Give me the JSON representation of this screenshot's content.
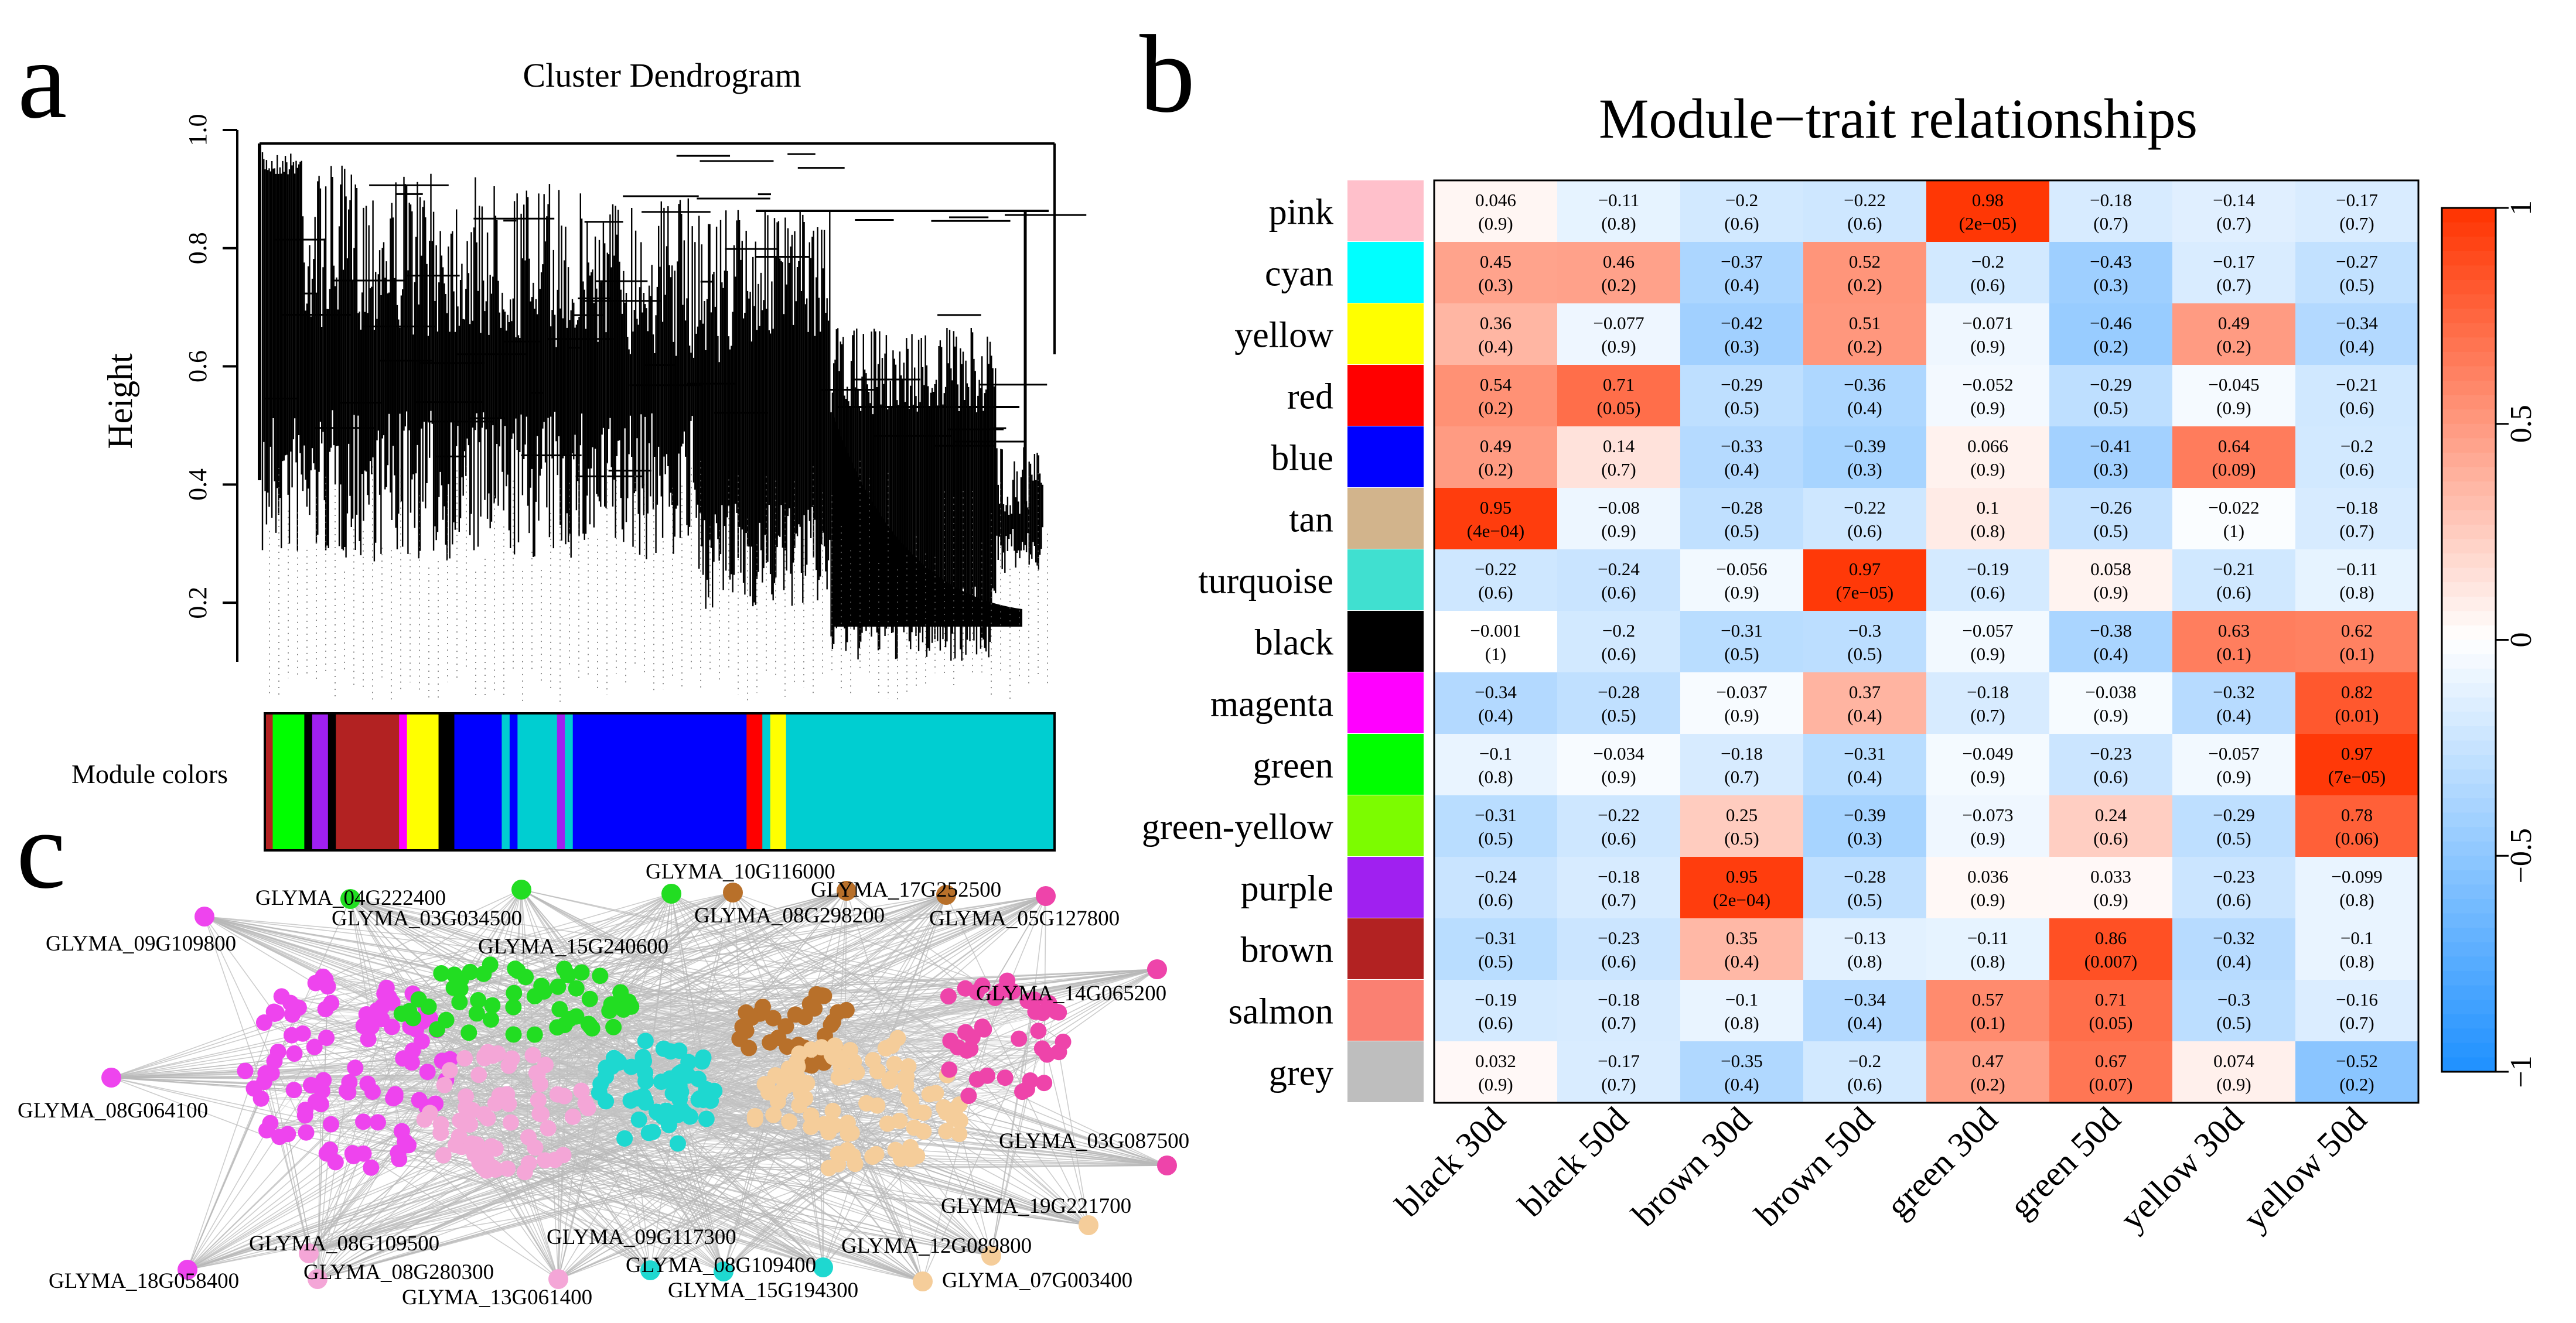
{
  "panels": {
    "a": "a",
    "b": "b",
    "c": "c"
  },
  "chart_data": [
    {
      "type": "dendrogram",
      "title": "Cluster Dendrogram",
      "ylabel": "Height",
      "ylim": [
        0.1,
        1.0
      ],
      "yticks": [
        "0.2",
        "0.4",
        "0.6",
        "0.8",
        "1.0"
      ],
      "colorbar_label": "Module colors",
      "module_color_strip": [
        {
          "color": "#b22222",
          "width": 1
        },
        {
          "color": "#00ff00",
          "width": 4
        },
        {
          "color": "#000000",
          "width": 1
        },
        {
          "color": "#a020f0",
          "width": 2
        },
        {
          "color": "#000000",
          "width": 1
        },
        {
          "color": "#b22222",
          "width": 8
        },
        {
          "color": "#ff00ff",
          "width": 1
        },
        {
          "color": "#ffff00",
          "width": 4
        },
        {
          "color": "#000000",
          "width": 2
        },
        {
          "color": "#0000ff",
          "width": 6
        },
        {
          "color": "#00ced1",
          "width": 1
        },
        {
          "color": "#0000ff",
          "width": 1
        },
        {
          "color": "#00ced1",
          "width": 5
        },
        {
          "color": "#a020f0",
          "width": 1
        },
        {
          "color": "#00ced1",
          "width": 1
        },
        {
          "color": "#0000ff",
          "width": 22
        },
        {
          "color": "#ff0000",
          "width": 2
        },
        {
          "color": "#00ced1",
          "width": 1
        },
        {
          "color": "#ffff00",
          "width": 2
        },
        {
          "color": "#00ced1",
          "width": 34
        }
      ]
    },
    {
      "type": "heatmap",
      "title": "Module−trait relationships",
      "x_categories": [
        "black 30d",
        "black 50d",
        "brown 30d",
        "brown 50d",
        "green 30d",
        "green 50d",
        "yellow 30d",
        "yellow 50d"
      ],
      "y_categories": [
        "pink",
        "cyan",
        "yellow",
        "red",
        "blue",
        "tan",
        "turquoise",
        "black",
        "magenta",
        "green",
        "green-yellow",
        "purple",
        "brown",
        "salmon",
        "grey"
      ],
      "module_colors": [
        "#ffc0cb",
        "#00ffff",
        "#ffff00",
        "#ff0000",
        "#0000ff",
        "#d2b48c",
        "#40e0d0",
        "#000000",
        "#ff00ff",
        "#00ff00",
        "#7cfc00",
        "#a020f0",
        "#b22222",
        "#fa8072",
        "#bebebe"
      ],
      "values": [
        [
          0.046,
          -0.11,
          -0.2,
          -0.22,
          0.98,
          -0.18,
          -0.14,
          -0.17
        ],
        [
          0.45,
          0.46,
          -0.37,
          0.52,
          -0.2,
          -0.43,
          -0.17,
          -0.27
        ],
        [
          0.36,
          -0.077,
          -0.42,
          0.51,
          -0.071,
          -0.46,
          0.49,
          -0.34
        ],
        [
          0.54,
          0.71,
          -0.29,
          -0.36,
          -0.052,
          -0.29,
          -0.045,
          -0.21
        ],
        [
          0.49,
          0.14,
          -0.33,
          -0.39,
          0.066,
          -0.41,
          0.64,
          -0.2
        ],
        [
          0.95,
          -0.08,
          -0.28,
          -0.22,
          0.1,
          -0.26,
          -0.022,
          -0.18
        ],
        [
          -0.22,
          -0.24,
          -0.056,
          0.97,
          -0.19,
          0.058,
          -0.21,
          -0.11
        ],
        [
          -0.001,
          -0.2,
          -0.31,
          -0.3,
          -0.057,
          -0.38,
          0.63,
          0.62
        ],
        [
          -0.34,
          -0.28,
          -0.037,
          0.37,
          -0.18,
          -0.038,
          -0.32,
          0.82
        ],
        [
          -0.1,
          -0.034,
          -0.18,
          -0.31,
          -0.049,
          -0.23,
          -0.057,
          0.97
        ],
        [
          -0.31,
          -0.22,
          0.25,
          -0.39,
          -0.073,
          0.24,
          -0.29,
          0.78
        ],
        [
          -0.24,
          -0.18,
          0.95,
          -0.28,
          0.036,
          0.033,
          -0.23,
          -0.099
        ],
        [
          -0.31,
          -0.23,
          0.35,
          -0.13,
          -0.11,
          0.86,
          -0.32,
          -0.1
        ],
        [
          -0.19,
          -0.18,
          -0.1,
          -0.34,
          0.57,
          0.71,
          -0.3,
          -0.16
        ],
        [
          0.032,
          -0.17,
          -0.35,
          -0.2,
          0.47,
          0.67,
          0.074,
          -0.52
        ]
      ],
      "value_labels": [
        [
          "0.046",
          "−0.11",
          "−0.2",
          "−0.22",
          "0.98",
          "−0.18",
          "−0.14",
          "−0.17"
        ],
        [
          "0.45",
          "0.46",
          "−0.37",
          "0.52",
          "−0.2",
          "−0.43",
          "−0.17",
          "−0.27"
        ],
        [
          "0.36",
          "−0.077",
          "−0.42",
          "0.51",
          "−0.071",
          "−0.46",
          "0.49",
          "−0.34"
        ],
        [
          "0.54",
          "0.71",
          "−0.29",
          "−0.36",
          "−0.052",
          "−0.29",
          "−0.045",
          "−0.21"
        ],
        [
          "0.49",
          "0.14",
          "−0.33",
          "−0.39",
          "0.066",
          "−0.41",
          "0.64",
          "−0.2"
        ],
        [
          "0.95",
          "−0.08",
          "−0.28",
          "−0.22",
          "0.1",
          "−0.26",
          "−0.022",
          "−0.18"
        ],
        [
          "−0.22",
          "−0.24",
          "−0.056",
          "0.97",
          "−0.19",
          "0.058",
          "−0.21",
          "−0.11"
        ],
        [
          "−0.001",
          "−0.2",
          "−0.31",
          "−0.3",
          "−0.057",
          "−0.38",
          "0.63",
          "0.62"
        ],
        [
          "−0.34",
          "−0.28",
          "−0.037",
          "0.37",
          "−0.18",
          "−0.038",
          "−0.32",
          "0.82"
        ],
        [
          "−0.1",
          "−0.034",
          "−0.18",
          "−0.31",
          "−0.049",
          "−0.23",
          "−0.057",
          "0.97"
        ],
        [
          "−0.31",
          "−0.22",
          "0.25",
          "−0.39",
          "−0.073",
          "0.24",
          "−0.29",
          "0.78"
        ],
        [
          "−0.24",
          "−0.18",
          "0.95",
          "−0.28",
          "0.036",
          "0.033",
          "−0.23",
          "−0.099"
        ],
        [
          "−0.31",
          "−0.23",
          "0.35",
          "−0.13",
          "−0.11",
          "0.86",
          "−0.32",
          "−0.1"
        ],
        [
          "−0.19",
          "−0.18",
          "−0.1",
          "−0.34",
          "0.57",
          "0.71",
          "−0.3",
          "−0.16"
        ],
        [
          "0.032",
          "−0.17",
          "−0.35",
          "−0.2",
          "0.47",
          "0.67",
          "0.074",
          "−0.52"
        ]
      ],
      "p_values": [
        [
          "(0.9)",
          "(0.8)",
          "(0.6)",
          "(0.6)",
          "(2e−05)",
          "(0.7)",
          "(0.7)",
          "(0.7)"
        ],
        [
          "(0.3)",
          "(0.2)",
          "(0.4)",
          "(0.2)",
          "(0.6)",
          "(0.3)",
          "(0.7)",
          "(0.5)"
        ],
        [
          "(0.4)",
          "(0.9)",
          "(0.3)",
          "(0.2)",
          "(0.9)",
          "(0.2)",
          "(0.2)",
          "(0.4)"
        ],
        [
          "(0.2)",
          "(0.05)",
          "(0.5)",
          "(0.4)",
          "(0.9)",
          "(0.5)",
          "(0.9)",
          "(0.6)"
        ],
        [
          "(0.2)",
          "(0.7)",
          "(0.4)",
          "(0.3)",
          "(0.9)",
          "(0.3)",
          "(0.09)",
          "(0.6)"
        ],
        [
          "(4e−04)",
          "(0.9)",
          "(0.5)",
          "(0.6)",
          "(0.8)",
          "(0.5)",
          "(1)",
          "(0.7)"
        ],
        [
          "(0.6)",
          "(0.6)",
          "(0.9)",
          "(7e−05)",
          "(0.6)",
          "(0.9)",
          "(0.6)",
          "(0.8)"
        ],
        [
          "(1)",
          "(0.6)",
          "(0.5)",
          "(0.5)",
          "(0.9)",
          "(0.4)",
          "(0.1)",
          "(0.1)"
        ],
        [
          "(0.4)",
          "(0.5)",
          "(0.9)",
          "(0.4)",
          "(0.7)",
          "(0.9)",
          "(0.4)",
          "(0.01)"
        ],
        [
          "(0.8)",
          "(0.9)",
          "(0.7)",
          "(0.4)",
          "(0.9)",
          "(0.6)",
          "(0.9)",
          "(7e−05)"
        ],
        [
          "(0.5)",
          "(0.6)",
          "(0.5)",
          "(0.3)",
          "(0.9)",
          "(0.6)",
          "(0.5)",
          "(0.06)"
        ],
        [
          "(0.6)",
          "(0.7)",
          "(2e−04)",
          "(0.5)",
          "(0.9)",
          "(0.9)",
          "(0.6)",
          "(0.8)"
        ],
        [
          "(0.5)",
          "(0.6)",
          "(0.4)",
          "(0.8)",
          "(0.8)",
          "(0.007)",
          "(0.4)",
          "(0.8)"
        ],
        [
          "(0.6)",
          "(0.7)",
          "(0.8)",
          "(0.4)",
          "(0.1)",
          "(0.05)",
          "(0.5)",
          "(0.7)"
        ],
        [
          "(0.9)",
          "(0.7)",
          "(0.4)",
          "(0.6)",
          "(0.2)",
          "(0.07)",
          "(0.9)",
          "(0.2)"
        ]
      ],
      "colorbar": {
        "range": [
          -1,
          1
        ],
        "ticks": [
          "1",
          "0.5",
          "0",
          "−0.5",
          "−1"
        ],
        "low_color": "#1e90ff",
        "mid_color": "#ffffff",
        "high_color": "#ff3300"
      }
    },
    {
      "type": "network",
      "node_groups": [
        {
          "module": "magenta",
          "color": "#ee44ee",
          "count": 95
        },
        {
          "module": "green",
          "color": "#22dd22",
          "count": 55
        },
        {
          "module": "pink",
          "color": "#f4a6d7",
          "count": 70
        },
        {
          "module": "turquoise",
          "color": "#1ed8d0",
          "count": 60
        },
        {
          "module": "brown",
          "color": "#b8702a",
          "count": 35
        },
        {
          "module": "tan",
          "color": "#f5cd9a",
          "count": 90
        },
        {
          "module": "magenta-right",
          "color": "#ee44aa",
          "count": 40
        }
      ],
      "hub_genes": [
        {
          "label": "GLYMA_04G222400",
          "module": "green",
          "color": "#22dd22"
        },
        {
          "label": "GLYMA_03G034500",
          "module": "green",
          "color": "#22dd22"
        },
        {
          "label": "GLYMA_15G240600",
          "module": "green",
          "color": "#22dd22"
        },
        {
          "label": "GLYMA_10G116000",
          "module": "brown",
          "color": "#b8702a"
        },
        {
          "label": "GLYMA_17G252500",
          "module": "brown",
          "color": "#b8702a"
        },
        {
          "label": "GLYMA_08G298200",
          "module": "brown",
          "color": "#b8702a"
        },
        {
          "label": "GLYMA_05G127800",
          "module": "magenta",
          "color": "#ee44aa"
        },
        {
          "label": "GLYMA_09G109800",
          "module": "magenta",
          "color": "#ee44ee"
        },
        {
          "label": "GLYMA_14G065200",
          "module": "magenta",
          "color": "#ee44aa"
        },
        {
          "label": "GLYMA_08G064100",
          "module": "magenta",
          "color": "#ee44ee"
        },
        {
          "label": "GLYMA_03G087500",
          "module": "magenta",
          "color": "#ee44aa"
        },
        {
          "label": "GLYMA_19G221700",
          "module": "tan",
          "color": "#f5cd9a"
        },
        {
          "label": "GLYMA_12G089800",
          "module": "tan",
          "color": "#f5cd9a"
        },
        {
          "label": "GLYMA_07G003400",
          "module": "tan",
          "color": "#f5cd9a"
        },
        {
          "label": "GLYMA_08G109500",
          "module": "pink",
          "color": "#f4a6d7"
        },
        {
          "label": "GLYMA_08G280300",
          "module": "pink",
          "color": "#f4a6d7"
        },
        {
          "label": "GLYMA_13G061400",
          "module": "pink",
          "color": "#f4a6d7"
        },
        {
          "label": "GLYMA_18G058400",
          "module": "magenta",
          "color": "#ee44ee"
        },
        {
          "label": "GLYMA_09G117300",
          "module": "turquoise",
          "color": "#1ed8d0"
        },
        {
          "label": "GLYMA_08G109400",
          "module": "turquoise",
          "color": "#1ed8d0"
        },
        {
          "label": "GLYMA_15G194300",
          "module": "turquoise",
          "color": "#1ed8d0"
        }
      ]
    }
  ]
}
